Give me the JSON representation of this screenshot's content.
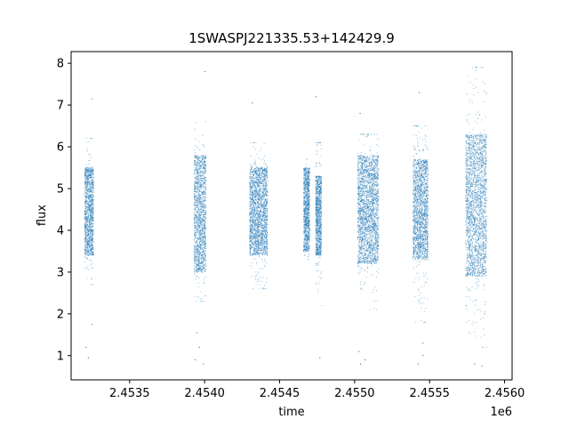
{
  "chart_data": {
    "type": "scatter",
    "title": "1SWASPJ221335.53+142429.9",
    "xlabel": "time",
    "ylabel": "flux",
    "x_offset_label": "1e6",
    "x_scale": 1000000,
    "xlim": [
      2.45311,
      2.45605
    ],
    "ylim": [
      0.42,
      8.28
    ],
    "x_ticks": [
      2.4535,
      2.454,
      2.4545,
      2.455,
      2.4555,
      2.456
    ],
    "x_tick_labels": [
      "2.4535",
      "2.4540",
      "2.4545",
      "2.4550",
      "2.4555",
      "2.4560"
    ],
    "y_ticks": [
      1,
      2,
      3,
      4,
      5,
      6,
      7,
      8
    ],
    "y_tick_labels": [
      "1",
      "2",
      "3",
      "4",
      "5",
      "6",
      "7",
      "8"
    ],
    "grid": false,
    "legend": "none",
    "point_color": "#1f77b4",
    "series": [
      {
        "seasons": [
          {
            "x_start": 2453200,
            "x_end": 2453260,
            "core": [
              3.4,
              5.5
            ],
            "spread": [
              2.7,
              6.2
            ],
            "outliers": [
              0.95,
              1.2,
              1.75,
              7.15
            ]
          },
          {
            "x_start": 2453930,
            "x_end": 2454010,
            "core": [
              3.0,
              5.8
            ],
            "spread": [
              2.3,
              6.6
            ],
            "outliers": [
              0.8,
              0.9,
              1.2,
              1.55,
              7.8
            ]
          },
          {
            "x_start": 2454300,
            "x_end": 2454420,
            "core": [
              3.4,
              5.5
            ],
            "spread": [
              2.6,
              6.1
            ],
            "outliers": [
              7.05
            ]
          },
          {
            "x_start": 2454660,
            "x_end": 2454700,
            "core": [
              3.5,
              5.5
            ],
            "spread": [
              3.3,
              5.7
            ],
            "outliers": []
          },
          {
            "x_start": 2454740,
            "x_end": 2454780,
            "core": [
              3.4,
              5.3
            ],
            "spread": [
              2.2,
              6.1
            ],
            "outliers": [
              0.95,
              7.2
            ]
          },
          {
            "x_start": 2455020,
            "x_end": 2455160,
            "core": [
              3.2,
              5.8
            ],
            "spread": [
              2.1,
              6.3
            ],
            "outliers": [
              0.8,
              0.9,
              1.1,
              6.8
            ]
          },
          {
            "x_start": 2455390,
            "x_end": 2455490,
            "core": [
              3.3,
              5.7
            ],
            "spread": [
              1.8,
              6.5
            ],
            "outliers": [
              0.8,
              1.0,
              1.3,
              7.3
            ]
          },
          {
            "x_start": 2455740,
            "x_end": 2455880,
            "core": [
              2.9,
              6.3
            ],
            "spread": [
              1.2,
              7.9
            ],
            "outliers": [
              0.75,
              0.8
            ]
          }
        ]
      }
    ]
  }
}
